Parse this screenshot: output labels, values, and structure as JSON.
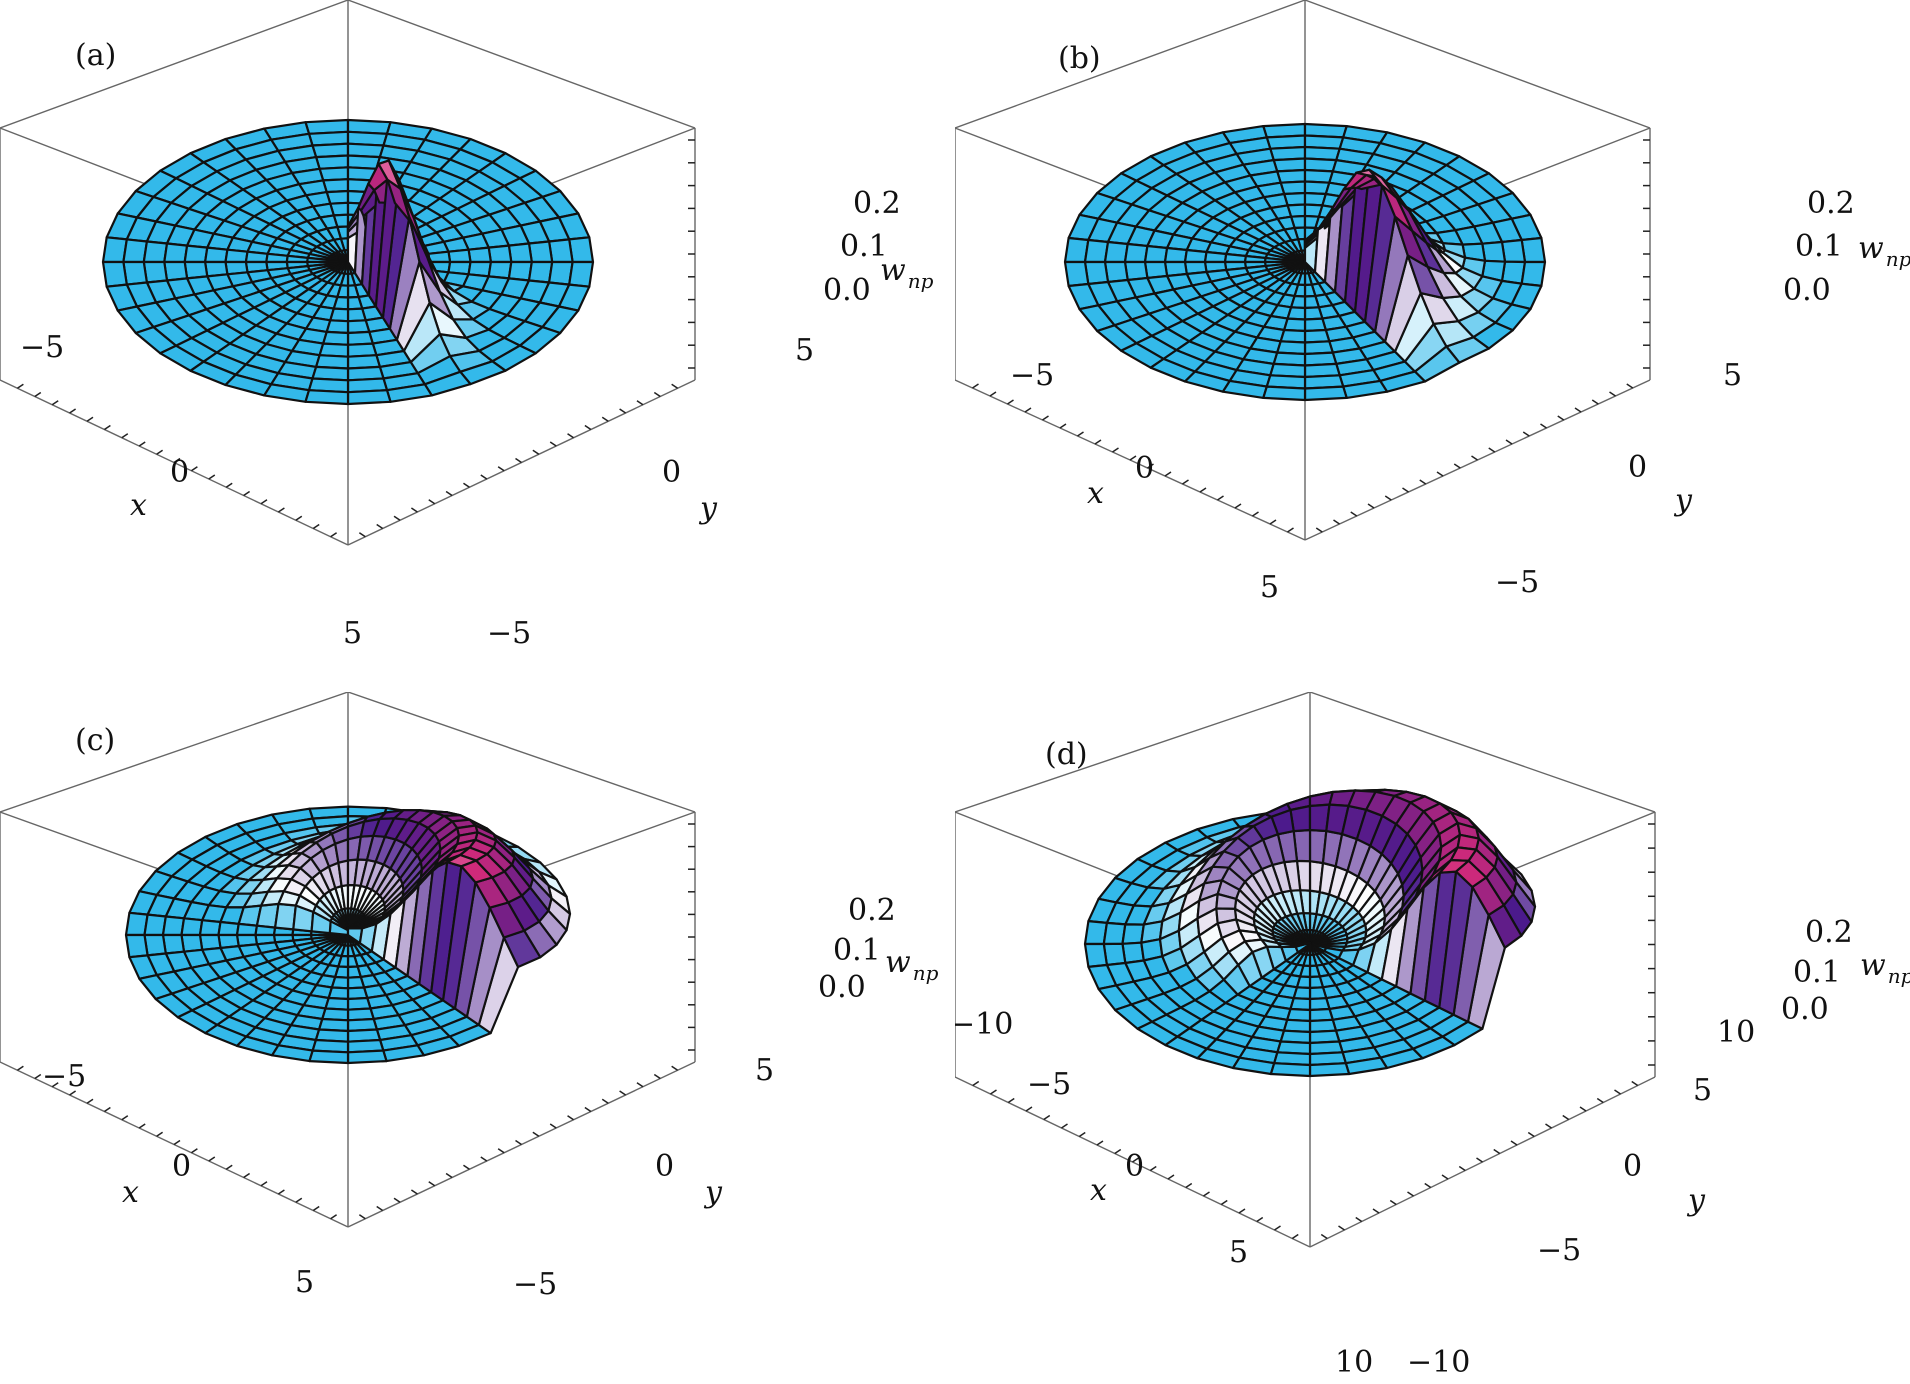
{
  "figure": {
    "colors": {
      "base": "#33b9ea",
      "grid": "#111111",
      "box": "#666666",
      "dark": "#4a1a8c",
      "magenta": "#d22a7a",
      "white": "#ffffff",
      "peak": "#f5e39a"
    }
  },
  "chart_data": [
    {
      "type": "surface3d",
      "panel_label": "(a)",
      "xlabel": "x",
      "ylabel": "y",
      "zlabel": "w",
      "zlabel_sub": "np",
      "x_ticks": [
        "−5",
        "0",
        "5"
      ],
      "y_ticks": [
        "−5",
        "0",
        "5"
      ],
      "z_ticks": [
        "0.0",
        "0.1",
        "0.2"
      ],
      "xlim": [
        -8,
        8
      ],
      "ylim": [
        -8,
        8
      ],
      "zlim": [
        0,
        0.25
      ],
      "peak_w": 0.23,
      "peak_r": 2.4,
      "peak_theta_deg": 60,
      "spiral_span_deg": 40,
      "radial_width": 0.35,
      "disk_radius": 7
    },
    {
      "type": "surface3d",
      "panel_label": "(b)",
      "xlabel": "x",
      "ylabel": "y",
      "zlabel": "w",
      "zlabel_sub": "np",
      "x_ticks": [
        "−5",
        "0",
        "5"
      ],
      "y_ticks": [
        "−5",
        "0",
        "5"
      ],
      "z_ticks": [
        "0.0",
        "0.1",
        "0.2"
      ],
      "xlim": [
        -8,
        8
      ],
      "ylim": [
        -8,
        8
      ],
      "zlim": [
        0,
        0.25
      ],
      "peak_w": 0.22,
      "peak_r": 3.0,
      "peak_theta_deg": 50,
      "spiral_span_deg": 80,
      "radial_width": 0.32,
      "disk_radius": 7
    },
    {
      "type": "surface3d",
      "panel_label": "(c)",
      "xlabel": "x",
      "ylabel": "y",
      "zlabel": "w",
      "zlabel_sub": "np",
      "x_ticks": [
        "−5",
        "0",
        "5"
      ],
      "y_ticks": [
        "−5",
        "0",
        "5"
      ],
      "z_ticks": [
        "0.0",
        "0.1",
        "0.2"
      ],
      "xlim": [
        -8,
        8
      ],
      "ylim": [
        -8,
        8
      ],
      "zlim": [
        0,
        0.25
      ],
      "peak_w": 0.2,
      "peak_r": 4.5,
      "peak_theta_deg": 40,
      "spiral_span_deg": 200,
      "radial_width": 0.28,
      "disk_radius": 7
    },
    {
      "type": "surface3d",
      "panel_label": "(d)",
      "xlabel": "x",
      "ylabel": "y",
      "zlabel": "w",
      "zlabel_sub": "np",
      "x_ticks": [
        "−10",
        "−5",
        "0",
        "5",
        "10"
      ],
      "y_ticks": [
        "−10",
        "−5",
        "0",
        "5",
        "10"
      ],
      "z_ticks": [
        "0.0",
        "0.1",
        "0.2"
      ],
      "xlim": [
        -11,
        11
      ],
      "ylim": [
        -11,
        11
      ],
      "zlim": [
        0,
        0.25
      ],
      "peak_w": 0.2,
      "peak_r": 7.5,
      "peak_theta_deg": 35,
      "spiral_span_deg": 260,
      "radial_width": 0.22,
      "disk_radius": 10
    }
  ]
}
